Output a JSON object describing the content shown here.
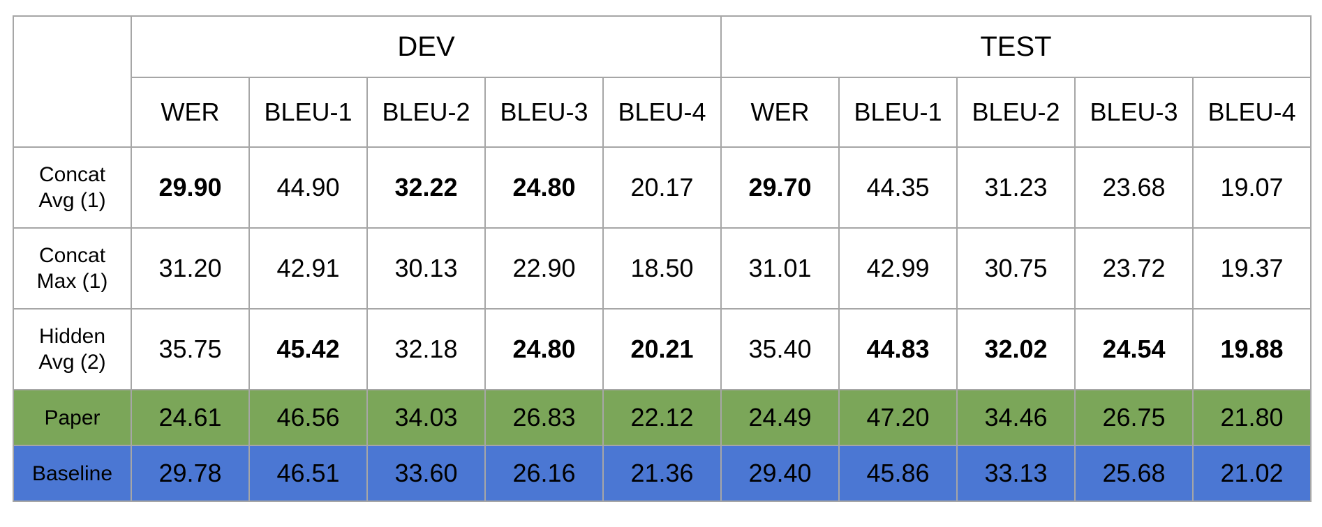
{
  "chart_data": {
    "type": "table",
    "column_groups": [
      "DEV",
      "TEST"
    ],
    "metrics": [
      "WER",
      "BLEU-1",
      "BLEU-2",
      "BLEU-3",
      "BLEU-4"
    ],
    "rows": [
      {
        "label_lines": [
          "Concat",
          "Avg (1)"
        ],
        "values": [
          "29.90",
          "44.90",
          "32.22",
          "24.80",
          "20.17",
          "29.70",
          "44.35",
          "31.23",
          "23.68",
          "19.07"
        ],
        "bold": [
          true,
          false,
          true,
          true,
          false,
          true,
          false,
          false,
          false,
          false
        ],
        "fill": ""
      },
      {
        "label_lines": [
          "Concat",
          "Max (1)"
        ],
        "values": [
          "31.20",
          "42.91",
          "30.13",
          "22.90",
          "18.50",
          "31.01",
          "42.99",
          "30.75",
          "23.72",
          "19.37"
        ],
        "bold": [
          false,
          false,
          false,
          false,
          false,
          false,
          false,
          false,
          false,
          false
        ],
        "fill": ""
      },
      {
        "label_lines": [
          "Hidden",
          "Avg (2)"
        ],
        "values": [
          "35.75",
          "45.42",
          "32.18",
          "24.80",
          "20.21",
          "35.40",
          "44.83",
          "32.02",
          "24.54",
          "19.88"
        ],
        "bold": [
          false,
          true,
          false,
          true,
          true,
          false,
          true,
          true,
          true,
          true
        ],
        "fill": ""
      },
      {
        "label_lines": [
          "Paper"
        ],
        "values": [
          "24.61",
          "46.56",
          "34.03",
          "26.83",
          "22.12",
          "24.49",
          "47.20",
          "34.46",
          "26.75",
          "21.80"
        ],
        "bold": [
          false,
          false,
          false,
          false,
          false,
          false,
          false,
          false,
          false,
          false
        ],
        "fill": "#7ba659"
      },
      {
        "label_lines": [
          "Baseline"
        ],
        "values": [
          "29.78",
          "46.51",
          "33.60",
          "26.16",
          "21.36",
          "29.40",
          "45.86",
          "33.13",
          "25.68",
          "21.02"
        ],
        "bold": [
          false,
          false,
          false,
          false,
          false,
          false,
          false,
          false,
          false,
          false
        ],
        "fill": "#4b77d3"
      }
    ]
  }
}
